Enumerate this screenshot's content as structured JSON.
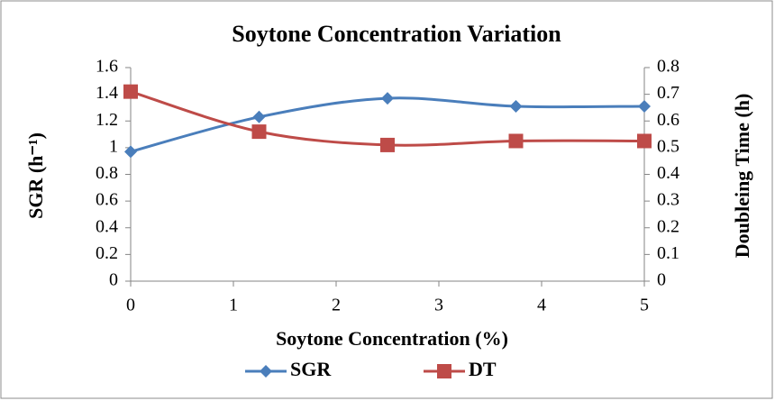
{
  "chart_data": {
    "type": "line",
    "title": "Soytone Concentration Variation",
    "xlabel": "Soytone Concentration (%)",
    "ylabel": "SGR (h⁻¹)",
    "y2label": "Doubleing Time (h)",
    "x": [
      0,
      1.25,
      2.5,
      3.75,
      5
    ],
    "series": [
      {
        "name": "SGR",
        "color": "#4a7ebb",
        "marker": "diamond",
        "values": [
          0.97,
          1.23,
          1.37,
          1.31,
          1.31
        ]
      },
      {
        "name": "DT",
        "color": "#be4b48",
        "marker": "square",
        "axis": "y2",
        "values": [
          0.71,
          0.56,
          0.51,
          0.525,
          0.525
        ]
      }
    ],
    "xlim": [
      0,
      5
    ],
    "xticks": [
      0,
      1,
      2,
      3,
      4,
      5
    ],
    "ylim": [
      0,
      1.6
    ],
    "yticks": [
      0,
      0.2,
      0.4,
      0.6,
      0.8,
      1,
      1.2,
      1.4,
      1.6
    ],
    "y2lim": [
      0,
      0.8
    ],
    "y2ticks": [
      0,
      0.1,
      0.2,
      0.3,
      0.4,
      0.5,
      0.6,
      0.7,
      0.8
    ],
    "smooth": true,
    "grid": false,
    "legend": "bottom"
  }
}
